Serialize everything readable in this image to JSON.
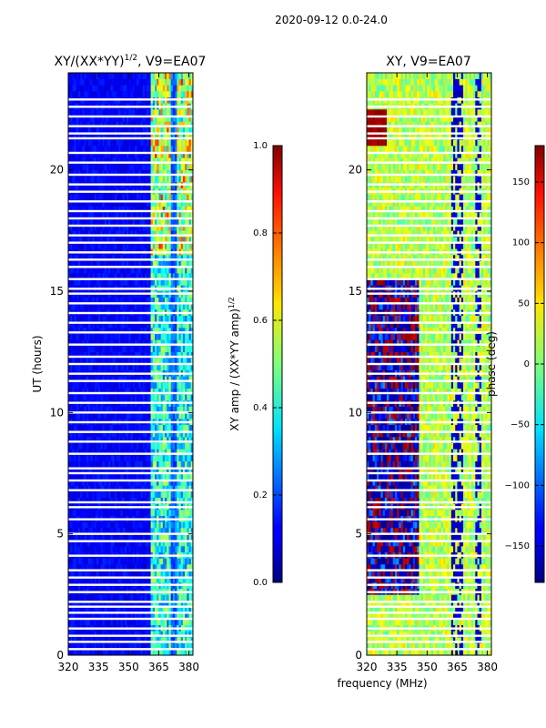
{
  "figure": {
    "suptitle": "2020-09-12 0.0-24.0",
    "xlabel": "frequency (MHz)"
  },
  "chart_data": [
    {
      "type": "heatmap",
      "id": "amp",
      "title": "XY/(XX*YY)",
      "title_exp": "1/2",
      "title_suffix": ", V9=EA07",
      "ylabel": "UT (hours)",
      "xlim": [
        320,
        382
      ],
      "ylim": [
        0,
        24
      ],
      "xticks": [
        320,
        335,
        350,
        365,
        380
      ],
      "yticks": [
        0,
        5,
        10,
        15,
        20
      ],
      "colormap": "jet",
      "colorbar": {
        "label": "XY amp / (XX*YY amp)",
        "label_exp": "1/2",
        "range": [
          0.0,
          1.0
        ],
        "ticks": [
          "0.0",
          "0.2",
          "0.4",
          "0.6",
          "0.8",
          "1.0"
        ],
        "tick_values": [
          0.0,
          0.2,
          0.4,
          0.6,
          0.8,
          1.0
        ]
      },
      "notes": "Low amplitude (~0.05-0.15) below 360 MHz; elevated amplitude (~0.4-0.8) in 360-382 MHz band, highest around 17-24 UT"
    },
    {
      "type": "heatmap",
      "id": "phase",
      "title": "XY, V9=EA07",
      "xlim": [
        320,
        382
      ],
      "ylim": [
        0,
        24
      ],
      "xticks": [
        320,
        335,
        350,
        365,
        380
      ],
      "yticks": [
        0,
        5,
        10,
        15,
        20
      ],
      "colormap": "jet",
      "colorbar": {
        "label": "phase (deg)",
        "range": [
          -180,
          180
        ],
        "ticks": [
          "−150",
          "−100",
          "−50",
          "0",
          "50",
          "100",
          "150"
        ],
        "tick_values": [
          -150,
          -100,
          -50,
          0,
          50,
          100,
          150
        ]
      },
      "notes": "Phase wraps near ±180 around 325-345 MHz for 2.5-15 UT, near 0 to +60 elsewhere"
    }
  ],
  "flagged_hours": [
    0.25,
    0.55,
    0.8,
    1.1,
    1.5,
    1.75,
    2.0,
    2.2,
    2.6,
    2.9,
    3.2,
    3.5,
    4.1,
    4.7,
    5.0,
    5.6,
    6.1,
    6.3,
    6.8,
    7.2,
    7.5,
    7.7,
    8.3,
    8.8,
    9.2,
    9.6,
    10.0,
    10.4,
    10.8,
    11.3,
    11.6,
    12.0,
    12.3,
    12.8,
    13.3,
    13.7,
    14.1,
    14.5,
    14.9,
    15.1,
    15.5,
    16.0,
    16.3,
    16.6,
    17.0,
    17.3,
    17.7,
    18.0,
    18.3,
    18.7,
    19.1,
    19.4,
    19.8,
    20.3,
    20.7,
    21.3,
    21.5,
    21.8,
    22.2,
    22.6,
    22.9
  ]
}
